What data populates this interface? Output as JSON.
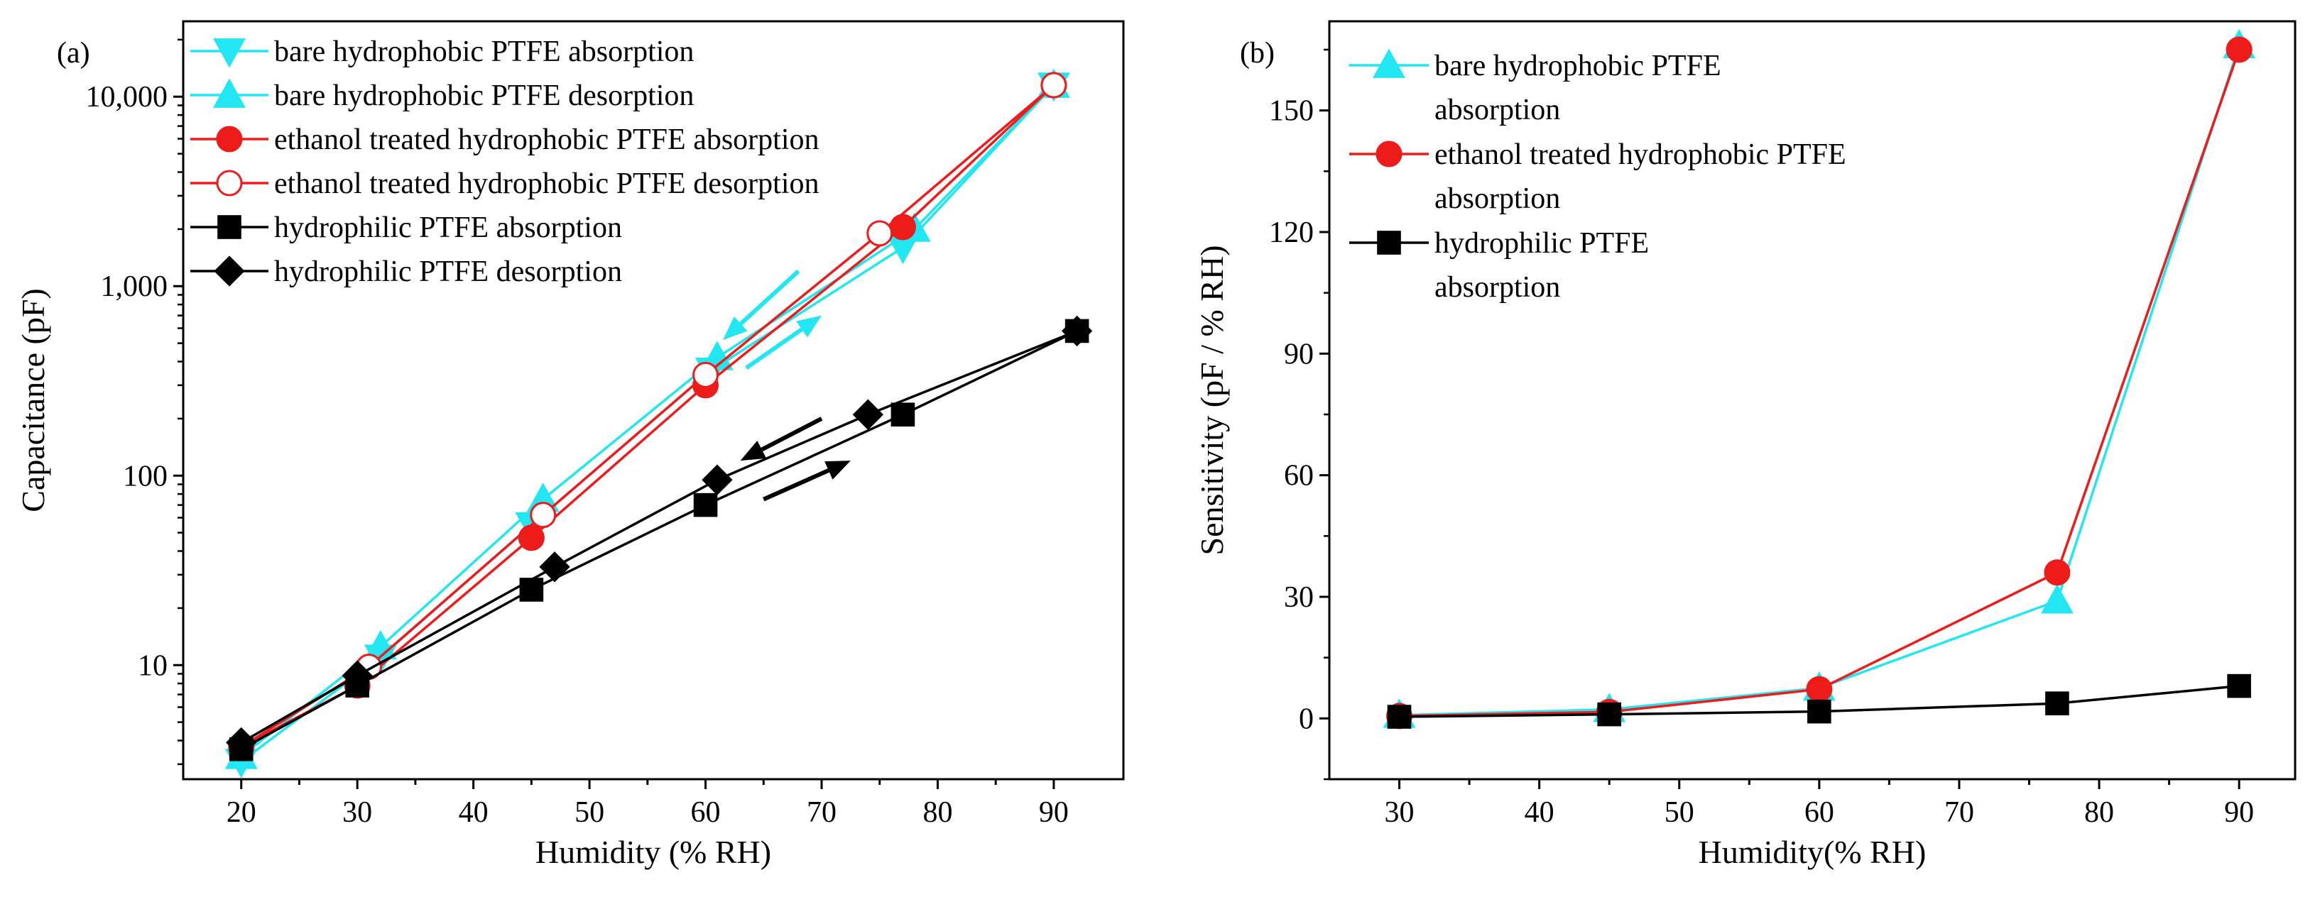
{
  "figure": {
    "colors": {
      "bare": "#22e6f2",
      "ethanol": "#ee1b1b",
      "hydrophilic": "#000000"
    }
  },
  "chart_data": [
    {
      "type": "line",
      "panel": "(a)",
      "xlabel": "Humidity (% RH)",
      "ylabel": "Capacitance (pF)",
      "xlim": [
        15,
        96
      ],
      "ylim": [
        2.5,
        25000
      ],
      "yscale": "log",
      "xticks": [
        20,
        30,
        40,
        50,
        60,
        70,
        80,
        90
      ],
      "xtick_labels": [
        "20",
        "30",
        "40",
        "50",
        "60",
        "70",
        "80",
        "90"
      ],
      "yticks": [
        10,
        100,
        1000,
        10000
      ],
      "ytick_labels": [
        "10",
        "100",
        "1,000",
        "10,000"
      ],
      "legend_position": "top-left",
      "series": [
        {
          "name": "bare hydrophobic PTFE absorption",
          "color": "#22e6f2",
          "marker": "triangle-down",
          "filled": true,
          "x": [
            20,
            32,
            45,
            60.5,
            77,
            90
          ],
          "y": [
            3.1,
            11,
            55,
            360,
            1600,
            11500
          ]
        },
        {
          "name": "bare hydrophobic PTFE desorption",
          "color": "#22e6f2",
          "marker": "triangle-up",
          "filled": true,
          "x": [
            20,
            32,
            46,
            61,
            78,
            90
          ],
          "y": [
            3.3,
            12.5,
            75,
            420,
            2000,
            11500
          ]
        },
        {
          "name": "ethanol treated hydrophobic PTFE absorption",
          "color": "#ee1b1b",
          "marker": "circle",
          "filled": true,
          "x": [
            20,
            30,
            45,
            60,
            77,
            90
          ],
          "y": [
            3.7,
            7.8,
            47,
            300,
            2050,
            11500
          ]
        },
        {
          "name": "ethanol treated hydrophobic PTFE desorption",
          "color": "#ee1b1b",
          "marker": "circle",
          "filled": false,
          "x": [
            20,
            31,
            46,
            60,
            75,
            90
          ],
          "y": [
            3.7,
            9.8,
            62,
            340,
            1900,
            11500
          ]
        },
        {
          "name": "hydrophilic PTFE absorption",
          "color": "#000000",
          "marker": "square",
          "filled": true,
          "x": [
            20,
            30,
            45,
            60,
            77,
            92
          ],
          "y": [
            3.6,
            7.8,
            25,
            70,
            210,
            580
          ]
        },
        {
          "name": "hydrophilic PTFE desorption",
          "color": "#000000",
          "marker": "diamond",
          "filled": true,
          "x": [
            20,
            30,
            47,
            61,
            74,
            92
          ],
          "y": [
            3.9,
            8.8,
            33,
            95,
            210,
            580
          ]
        }
      ],
      "annotations": [
        {
          "type": "arrow",
          "color": "#22e6f2",
          "from": [
            68,
            1200
          ],
          "to": [
            61.5,
            520
          ],
          "meaning": "desorption"
        },
        {
          "type": "arrow",
          "color": "#22e6f2",
          "from": [
            63.5,
            370
          ],
          "to": [
            70,
            700
          ],
          "meaning": "absorption"
        },
        {
          "type": "arrow",
          "color": "#000000",
          "from": [
            70,
            200
          ],
          "to": [
            63,
            120
          ],
          "meaning": "desorption"
        },
        {
          "type": "arrow",
          "color": "#000000",
          "from": [
            65,
            75
          ],
          "to": [
            72.5,
            120
          ],
          "meaning": "absorption"
        }
      ]
    },
    {
      "type": "line",
      "panel": "(b)",
      "xlabel": "Humidity(% RH)",
      "ylabel": "Sensitivity (pF / % RH)",
      "xlim": [
        25,
        94
      ],
      "ylim": [
        -15,
        172
      ],
      "xticks": [
        30,
        40,
        50,
        60,
        70,
        80,
        90
      ],
      "xtick_labels": [
        "30",
        "40",
        "50",
        "60",
        "70",
        "80",
        "90"
      ],
      "yticks": [
        0,
        30,
        60,
        90,
        120,
        150
      ],
      "ytick_labels": [
        "0",
        "30",
        "60",
        "90",
        "120",
        "150"
      ],
      "legend_position": "top-left",
      "series": [
        {
          "name": "bare hydrophobic PTFE absorption",
          "legend_lines": [
            "bare hydrophobic PTFE",
            "absorption"
          ],
          "color": "#22e6f2",
          "marker": "triangle-up",
          "filled": true,
          "x": [
            30,
            45,
            60,
            77,
            90
          ],
          "y": [
            0.8,
            2.2,
            7.5,
            29,
            166
          ]
        },
        {
          "name": "ethanol treated hydrophobic PTFE absorption",
          "legend_lines": [
            "ethanol treated hydrophobic PTFE",
            "absorption"
          ],
          "color": "#ee1b1b",
          "marker": "circle",
          "filled": true,
          "x": [
            30,
            45,
            60,
            77,
            90
          ],
          "y": [
            0.6,
            1.6,
            7.2,
            36,
            165
          ]
        },
        {
          "name": "hydrophilic PTFE absorption",
          "legend_lines": [
            "hydrophilic PTFE",
            "absorption"
          ],
          "color": "#000000",
          "marker": "square",
          "filled": true,
          "x": [
            30,
            45,
            60,
            77,
            90
          ],
          "y": [
            0.4,
            1.0,
            1.7,
            3.7,
            8.0
          ]
        }
      ]
    }
  ]
}
